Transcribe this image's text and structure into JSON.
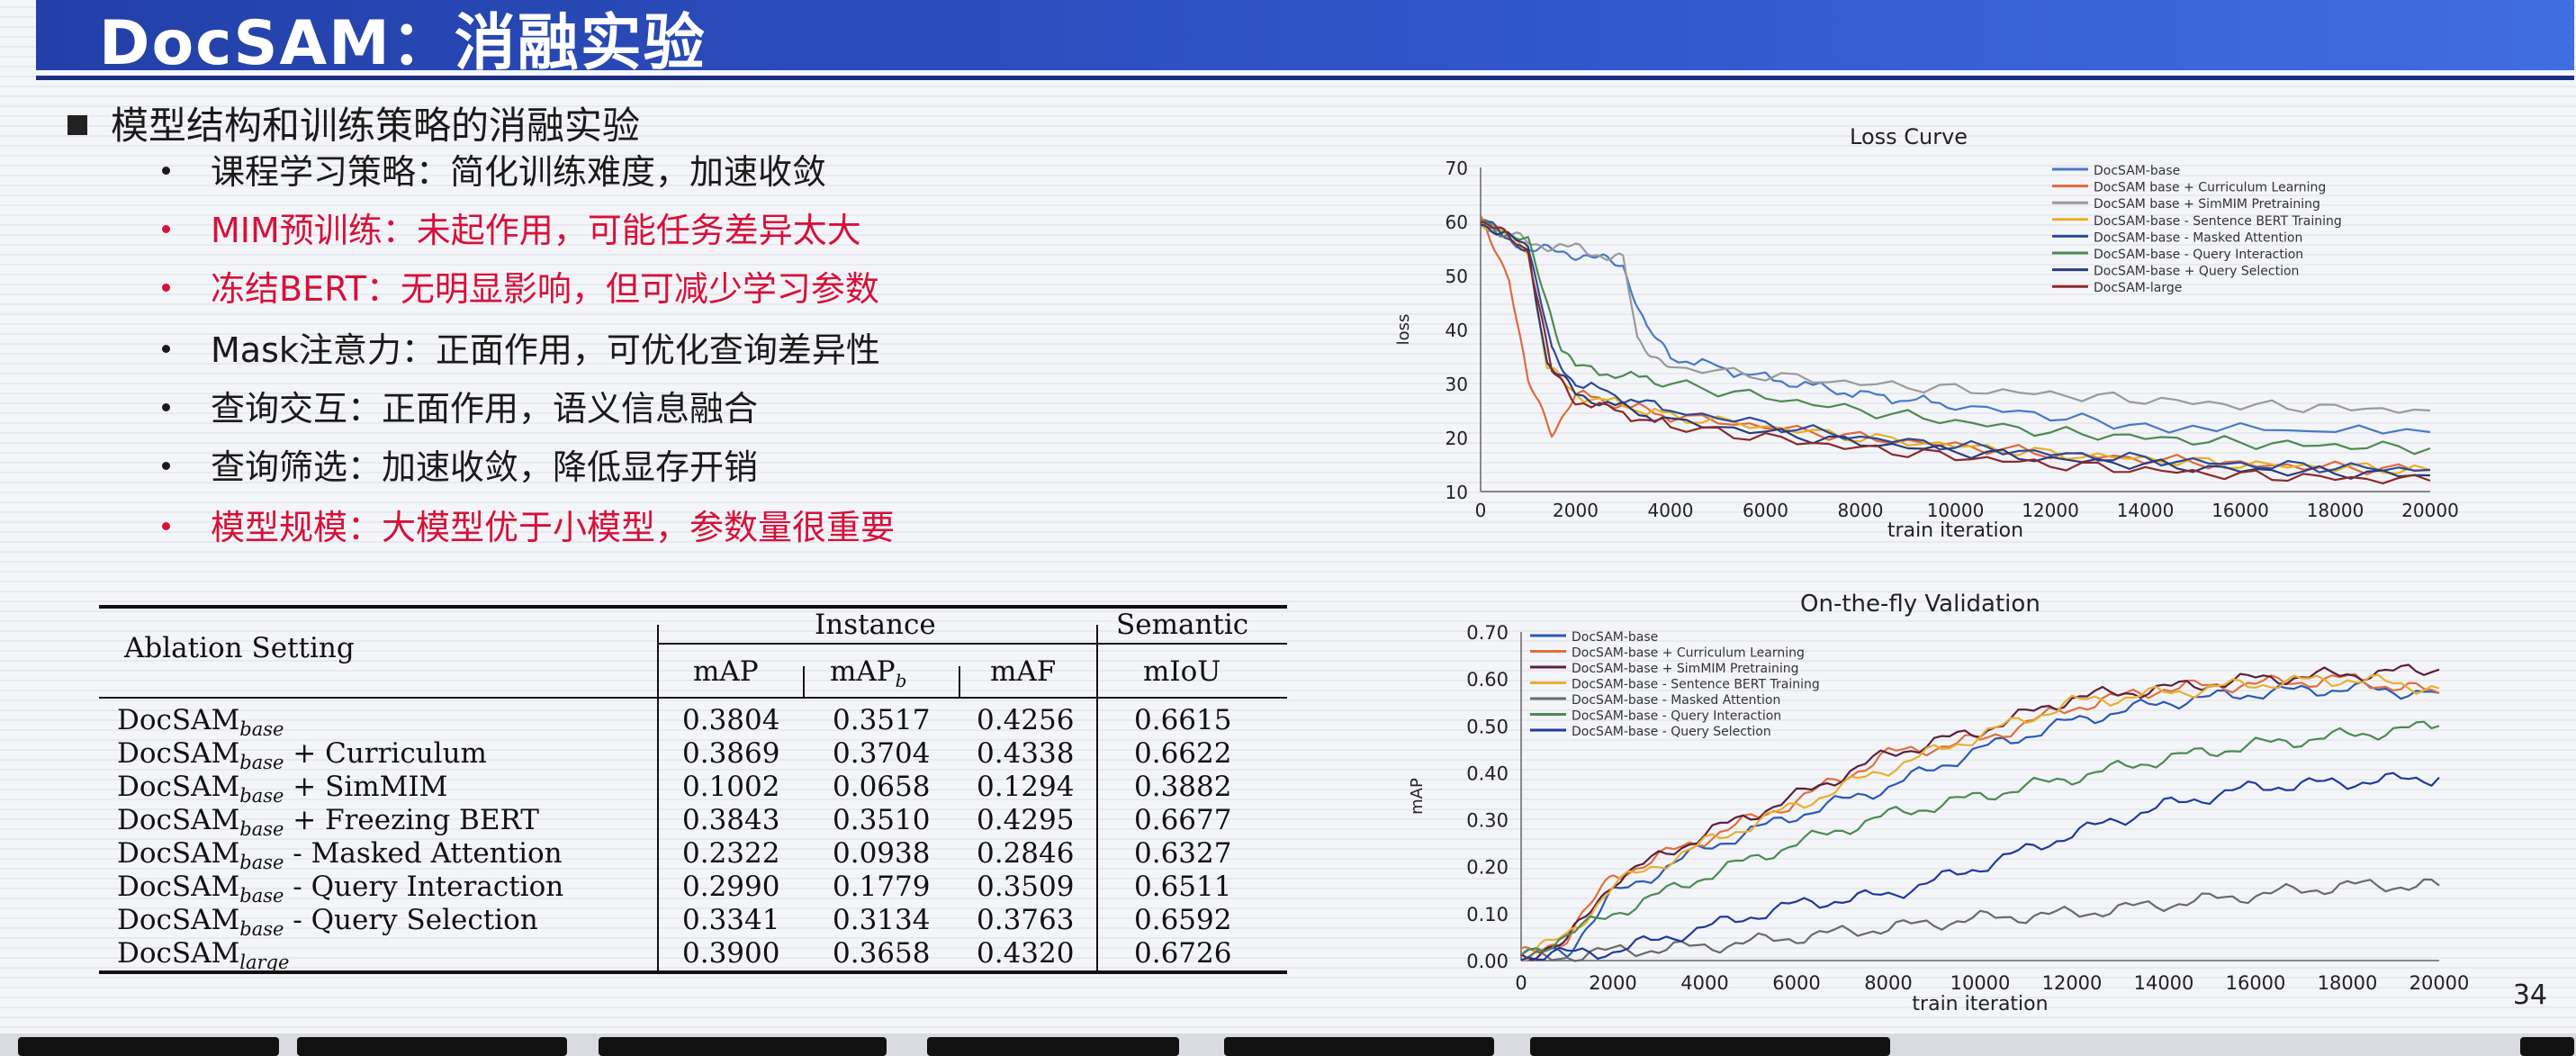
{
  "title": "DocSAM：消融实验",
  "main_bullet": "模型结构和训练策略的消融实验",
  "sub_bullets": [
    {
      "text": "课程学习策略：简化训练难度，加速收敛",
      "red": false
    },
    {
      "text": "MIM预训练：未起作用，可能任务差异太大",
      "red": true
    },
    {
      "text": "冻结BERT：无明显影响，但可减少学习参数",
      "red": true
    },
    {
      "text": "Mask注意力：正面作用，可优化查询差异性",
      "red": false
    },
    {
      "text": "查询交互：正面作用，语义信息融合",
      "red": false
    },
    {
      "text": "查询筛选：加速收敛，降低显存开销",
      "red": false
    },
    {
      "text": "模型规模：大模型优于小模型，参数量很重要",
      "red": true
    }
  ],
  "table": {
    "header_setting": "Ablation Setting",
    "header_instance": "Instance",
    "header_semantic": "Semantic",
    "subheaders": [
      "mAP",
      "mAPb",
      "mAF",
      "mIoU"
    ],
    "rows": [
      {
        "base": "DocSAM",
        "sub": "base",
        "suffix": "",
        "values": [
          "0.3804",
          "0.3517",
          "0.4256",
          "0.6615"
        ]
      },
      {
        "base": "DocSAM",
        "sub": "base",
        "suffix": " + Curriculum",
        "values": [
          "0.3869",
          "0.3704",
          "0.4338",
          "0.6622"
        ]
      },
      {
        "base": "DocSAM",
        "sub": "base",
        "suffix": " + SimMIM",
        "values": [
          "0.1002",
          "0.0658",
          "0.1294",
          "0.3882"
        ]
      },
      {
        "base": "DocSAM",
        "sub": "base",
        "suffix": " + Freezing BERT",
        "values": [
          "0.3843",
          "0.3510",
          "0.4295",
          "0.6677"
        ]
      },
      {
        "base": "DocSAM",
        "sub": "base",
        "suffix": " - Masked Attention",
        "values": [
          "0.2322",
          "0.0938",
          "0.2846",
          "0.6327"
        ]
      },
      {
        "base": "DocSAM",
        "sub": "base",
        "suffix": " - Query Interaction",
        "values": [
          "0.2990",
          "0.1779",
          "0.3509",
          "0.6511"
        ]
      },
      {
        "base": "DocSAM",
        "sub": "base",
        "suffix": " - Query Selection",
        "values": [
          "0.3341",
          "0.3134",
          "0.3763",
          "0.6592"
        ]
      },
      {
        "base": "DocSAM",
        "sub": "large",
        "suffix": "",
        "values": [
          "0.3900",
          "0.3658",
          "0.4320",
          "0.6726"
        ]
      }
    ]
  },
  "chart_data": [
    {
      "type": "line",
      "title": "Loss Curve",
      "xlabel": "train iteration",
      "ylabel": "loss",
      "xlim": [
        0,
        20000
      ],
      "ylim": [
        10,
        70
      ],
      "xticks": [
        "0",
        "2000",
        "4000",
        "6000",
        "8000",
        "10000",
        "12000",
        "14000",
        "16000",
        "18000",
        "20000"
      ],
      "yticks": [
        "10",
        "20",
        "30",
        "40",
        "50",
        "60",
        "70"
      ],
      "legend_position": "top-right",
      "series": [
        {
          "name": "DocSAM-base",
          "color": "#4a78c8",
          "x": [
            0,
            1000,
            2000,
            3000,
            3500,
            4000,
            6000,
            8000,
            10000,
            14000,
            20000
          ],
          "y": [
            60,
            55,
            54,
            52,
            40,
            35,
            31,
            28,
            26,
            22,
            21
          ]
        },
        {
          "name": "DocSAM base + Curriculum Learning",
          "color": "#e06a3a",
          "x": [
            0,
            600,
            1000,
            1500,
            2000,
            4000,
            8000,
            12000,
            16000,
            20000
          ],
          "y": [
            60,
            50,
            30,
            21,
            28,
            24,
            20,
            17,
            15,
            14
          ]
        },
        {
          "name": "DocSAM base + SimMIM Pretraining",
          "color": "#9a9a9a",
          "x": [
            0,
            1000,
            2000,
            3000,
            3300,
            4000,
            8000,
            12000,
            16000,
            20000
          ],
          "y": [
            60,
            56,
            55,
            53,
            38,
            33,
            30,
            28,
            26,
            25
          ]
        },
        {
          "name": "DocSAM-base - Sentence BERT Training",
          "color": "#e8b020",
          "x": [
            0,
            1000,
            1400,
            2000,
            4000,
            8000,
            12000,
            16000,
            20000
          ],
          "y": [
            60,
            55,
            33,
            28,
            24,
            20,
            17,
            15,
            14
          ]
        },
        {
          "name": "DocSAM-base - Masked Attention",
          "color": "#2b4a9a",
          "x": [
            0,
            1000,
            1500,
            2000,
            4000,
            8000,
            12000,
            16000,
            20000
          ],
          "y": [
            60,
            55,
            36,
            30,
            25,
            20,
            17,
            15,
            14
          ]
        },
        {
          "name": "DocSAM-base - Query Interaction",
          "color": "#4d8a52",
          "x": [
            0,
            1000,
            1700,
            2000,
            4000,
            8000,
            12000,
            16000,
            20000
          ],
          "y": [
            60,
            56,
            37,
            33,
            30,
            25,
            21,
            19,
            18
          ]
        },
        {
          "name": "DocSAM-base + Query Selection",
          "color": "#2a3a7a",
          "x": [
            0,
            1000,
            1400,
            2000,
            4000,
            8000,
            12000,
            16000,
            20000
          ],
          "y": [
            60,
            55,
            34,
            28,
            23,
            19,
            16,
            14,
            13
          ]
        },
        {
          "name": "DocSAM-large",
          "color": "#8a2a2a",
          "x": [
            0,
            1000,
            1500,
            2000,
            4000,
            8000,
            12000,
            16000,
            20000
          ],
          "y": [
            60,
            55,
            32,
            27,
            22,
            18,
            15,
            13,
            12
          ]
        }
      ]
    },
    {
      "type": "line",
      "title": "On-the-fly Validation",
      "xlabel": "train iteration",
      "ylabel": "mAP",
      "xlim": [
        0,
        20000
      ],
      "ylim": [
        0,
        0.7
      ],
      "xticks": [
        "0",
        "2000",
        "4000",
        "6000",
        "8000",
        "10000",
        "12000",
        "14000",
        "16000",
        "18000",
        "20000"
      ],
      "yticks": [
        "0.00",
        "0.10",
        "0.20",
        "0.30",
        "0.40",
        "0.50",
        "0.60",
        "0.70"
      ],
      "legend_position": "top-left",
      "series": [
        {
          "name": "DocSAM-base",
          "color": "#2a5ab8",
          "x": [
            0,
            1000,
            2000,
            4000,
            6000,
            8000,
            10000,
            12000,
            14000,
            16000,
            18000,
            20000
          ],
          "y": [
            0.01,
            0.02,
            0.14,
            0.24,
            0.31,
            0.37,
            0.45,
            0.51,
            0.55,
            0.57,
            0.58,
            0.57
          ]
        },
        {
          "name": "DocSAM-base + Curriculum Learning",
          "color": "#e07040",
          "x": [
            0,
            1000,
            2000,
            4000,
            6000,
            8000,
            10000,
            12000,
            14000,
            16000,
            18000,
            20000
          ],
          "y": [
            0.01,
            0.05,
            0.18,
            0.26,
            0.34,
            0.44,
            0.47,
            0.54,
            0.58,
            0.59,
            0.6,
            0.57
          ]
        },
        {
          "name": "DocSAM-base + SimMIM Pretraining",
          "color": "#5a2040",
          "x": [
            0,
            1000,
            2000,
            4000,
            6000,
            8000,
            10000,
            12000,
            14000,
            16000,
            18000,
            20000
          ],
          "y": [
            0.01,
            0.04,
            0.17,
            0.27,
            0.35,
            0.44,
            0.49,
            0.56,
            0.58,
            0.6,
            0.61,
            0.62
          ]
        },
        {
          "name": "DocSAM-base - Sentence BERT Training",
          "color": "#e8b030",
          "x": [
            0,
            1000,
            2000,
            4000,
            6000,
            8000,
            10000,
            12000,
            14000,
            16000,
            18000,
            20000
          ],
          "y": [
            0.01,
            0.05,
            0.16,
            0.25,
            0.33,
            0.41,
            0.48,
            0.55,
            0.57,
            0.59,
            0.6,
            0.58
          ]
        },
        {
          "name": "DocSAM-base - Masked Attention",
          "color": "#6a6a6a",
          "x": [
            0,
            2000,
            4000,
            6000,
            8000,
            10000,
            12000,
            14000,
            16000,
            18000,
            20000
          ],
          "y": [
            0.0,
            0.02,
            0.03,
            0.05,
            0.07,
            0.09,
            0.1,
            0.12,
            0.14,
            0.16,
            0.16
          ]
        },
        {
          "name": "DocSAM-base - Query Interaction",
          "color": "#4d8a52",
          "x": [
            0,
            2000,
            4000,
            6000,
            8000,
            10000,
            12000,
            14000,
            16000,
            18000,
            20000
          ],
          "y": [
            0.01,
            0.1,
            0.18,
            0.25,
            0.31,
            0.35,
            0.39,
            0.43,
            0.46,
            0.48,
            0.5
          ]
        },
        {
          "name": "DocSAM-base - Query Selection",
          "color": "#1f3a9a",
          "x": [
            0,
            2000,
            4000,
            6000,
            8000,
            10000,
            12000,
            14000,
            16000,
            18000,
            20000
          ],
          "y": [
            0.01,
            0.02,
            0.07,
            0.12,
            0.14,
            0.2,
            0.27,
            0.33,
            0.37,
            0.38,
            0.39
          ]
        }
      ]
    }
  ],
  "page_number": "34"
}
